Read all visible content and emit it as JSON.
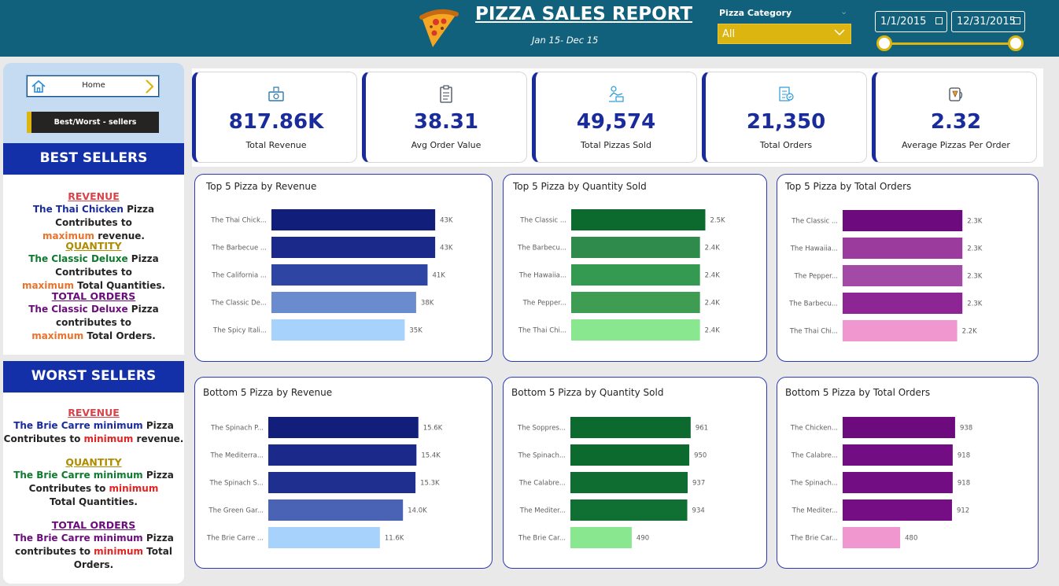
{
  "header": {
    "title": "PIZZA SALES REPORT",
    "subtitle": "Jan 15- Dec 15",
    "category_label": "Pizza Category",
    "category_value": "All",
    "date_start": "1/1/2015",
    "date_end": "12/31/2015"
  },
  "sidebar": {
    "home_label": "Home",
    "bw_label": "Best/Worst - sellers",
    "best_title": "BEST SELLERS",
    "worst_title": "WORST SELLERS",
    "best": {
      "rev_head": "REVENUE",
      "rev_name": "The Thai Chicken",
      "rev_t1": " Pizza Contributes to ",
      "rev_kw": "maximum",
      "rev_t2": " revenue.",
      "qty_head": "QUANTITY",
      "qty_name": "The Classic Deluxe",
      "qty_t1": " Pizza Contributes to ",
      "qty_kw": "maximum",
      "qty_t2": " Total Quantities.",
      "ord_head": "TOTAL ORDERS",
      "ord_name": "The Classic Deluxe",
      "ord_t1": " Pizza contributes to ",
      "ord_kw": "maximum",
      "ord_t2": " Total Orders."
    },
    "worst": {
      "rev_head": "REVENUE",
      "rev_name": "The Brie Carre",
      "rev_kw": " minimum",
      "rev_t1": " Pizza Contributes to ",
      "rev_kw2": "minimum",
      "rev_t2": " revenue.",
      "qty_head": "QUANTITY",
      "qty_name": "The Brie Carre",
      "qty_kw": " minimum",
      "qty_t1": " Pizza Contributes to ",
      "qty_kw2": "minimum",
      "qty_t2": " Total Quantities.",
      "ord_head": "TOTAL ORDERS",
      "ord_name": "The Brie Carre",
      "ord_kw": " minimum",
      "ord_t1": " Pizza contributes to ",
      "ord_kw2": "minimum",
      "ord_t2": " Total Orders."
    }
  },
  "kpis": [
    {
      "value": "817.86K",
      "label": "Total Revenue",
      "icon": "money-icon"
    },
    {
      "value": "38.31",
      "label": "Avg Order Value",
      "icon": "clipboard-icon"
    },
    {
      "value": "49,574",
      "label": "Total Pizzas Sold",
      "icon": "delivery-icon"
    },
    {
      "value": "21,350",
      "label": "Total Orders",
      "icon": "order-list-icon"
    },
    {
      "value": "2.32",
      "label": "Average Pizzas Per Order",
      "icon": "phone-pizza-icon"
    }
  ],
  "chart_data": [
    {
      "type": "bar",
      "orientation": "horizontal",
      "title": "Top 5 Pizza by Revenue",
      "categories": [
        "The Thai Chick...",
        "The Barbecue ...",
        "The California ...",
        "The Classic De...",
        "The Spicy Itali..."
      ],
      "values": [
        43,
        43,
        41,
        38,
        35
      ],
      "labels": [
        "43K",
        "43K",
        "41K",
        "38K",
        "35K"
      ],
      "xlim": [
        0,
        50
      ],
      "colors": [
        "#121f7a",
        "#1b2a8a",
        "#2e45a3",
        "#6a8ccf",
        "#a6d2fb"
      ]
    },
    {
      "type": "bar",
      "orientation": "horizontal",
      "title": "Top 5 Pizza by Quantity Sold",
      "categories": [
        "The Classic ...",
        "The Barbecu...",
        "The Hawaiia...",
        "The Pepper...",
        "The Thai Chi..."
      ],
      "values": [
        2.5,
        2.4,
        2.4,
        2.4,
        2.4
      ],
      "labels": [
        "2.5K",
        "2.4K",
        "2.4K",
        "2.4K",
        "2.4K"
      ],
      "xlim": [
        0,
        3.05
      ],
      "colors": [
        "#0d6a2f",
        "#2f8b4c",
        "#359a51",
        "#3f9d53",
        "#89e88f"
      ]
    },
    {
      "type": "bar",
      "orientation": "horizontal",
      "title": "Top 5 Pizza by Total Orders",
      "categories": [
        "The Classic ...",
        "The Hawaiia...",
        "The Pepper...",
        "The Barbecu...",
        "The Thai Chi..."
      ],
      "values": [
        2.3,
        2.3,
        2.3,
        2.3,
        2.2
      ],
      "labels": [
        "2.3K",
        "2.3K",
        "2.3K",
        "2.3K",
        "2.2K"
      ],
      "xlim": [
        0,
        2.78
      ],
      "colors": [
        "#6c0a7e",
        "#9b3b9e",
        "#a24aa6",
        "#8e2595",
        "#f097cf"
      ]
    },
    {
      "type": "bar",
      "orientation": "horizontal",
      "title": "Bottom 5 Pizza by Revenue",
      "categories": [
        "The Spinach P...",
        "The Mediterra...",
        "The Spinach S...",
        "The Green Gar...",
        "The Brie Carre ..."
      ],
      "values": [
        15.6,
        15.4,
        15.3,
        14.0,
        11.6
      ],
      "labels": [
        "15.6K",
        "15.4K",
        "15.3K",
        "14.0K",
        "11.6K"
      ],
      "xlim": [
        0,
        18.4
      ],
      "colors": [
        "#121f7a",
        "#1b2a8a",
        "#1e2f8f",
        "#4a63b5",
        "#a6d2fb"
      ]
    },
    {
      "type": "bar",
      "orientation": "horizontal",
      "title": "Bottom 5 Pizza by Quantity Sold",
      "categories": [
        "The Soppres...",
        "The Spinach...",
        "The Calabre...",
        "The Mediter...",
        "The Brie Car..."
      ],
      "values": [
        961,
        950,
        937,
        934,
        490
      ],
      "labels": [
        "961",
        "950",
        "937",
        "934",
        "490"
      ],
      "xlim": [
        0,
        1245
      ],
      "colors": [
        "#0d6a2f",
        "#0d6a2f",
        "#0f6d31",
        "#107033",
        "#89e88f"
      ]
    },
    {
      "type": "bar",
      "orientation": "horizontal",
      "title": "Bottom 5 Pizza by Total Orders",
      "categories": [
        "The Chicken...",
        "The Calabre...",
        "The Spinach...",
        "The Mediter...",
        "The Brie Car..."
      ],
      "values": [
        938,
        918,
        918,
        912,
        480
      ],
      "labels": [
        "938",
        "918",
        "918",
        "912",
        "480"
      ],
      "xlim": [
        0,
        1214
      ],
      "colors": [
        "#6c0a7e",
        "#720d83",
        "#720d83",
        "#750e85",
        "#f097cf"
      ]
    }
  ]
}
